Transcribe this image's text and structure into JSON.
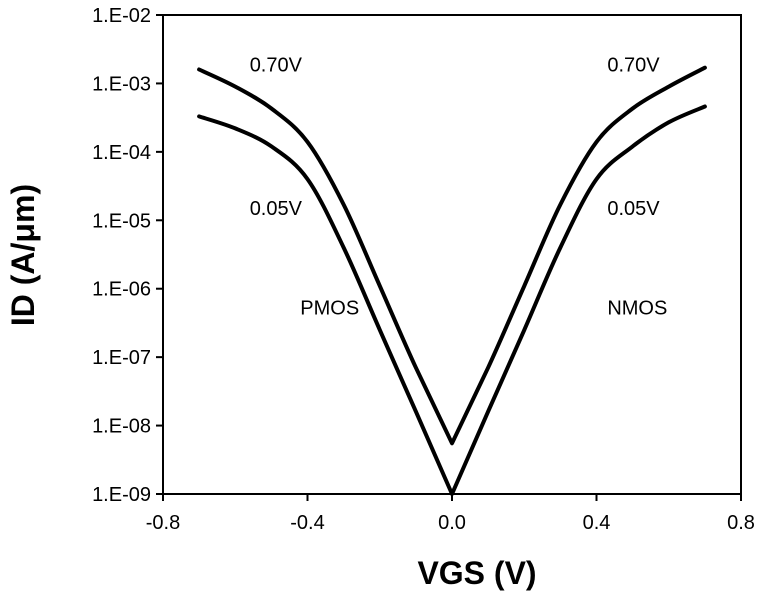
{
  "chart_data": {
    "type": "line",
    "xlabel": "VGS (V)",
    "ylabel": "ID (A/μm)",
    "xlim": [
      -0.8,
      0.8
    ],
    "ylim": [
      1e-09,
      0.01
    ],
    "yscale": "log",
    "x_ticks": [
      -0.8,
      -0.4,
      0.0,
      0.4,
      0.8
    ],
    "x_tick_labels": [
      "-0.8",
      "-0.4",
      "0.0",
      "0.4",
      "0.8"
    ],
    "y_ticks": [
      1e-09,
      1e-08,
      1e-07,
      1e-06,
      1e-05,
      0.0001,
      0.001,
      0.01
    ],
    "y_tick_labels": [
      "1.E-09",
      "1.E-08",
      "1.E-07",
      "1.E-06",
      "1.E-05",
      "1.E-04",
      "1.E-03",
      "1.E-02"
    ],
    "grid": false,
    "legend": "none",
    "series": [
      {
        "x": [
          -0.7,
          -0.6,
          -0.5,
          -0.4,
          -0.3,
          -0.2,
          -0.1,
          0.0,
          0.1,
          0.2,
          0.3,
          0.4,
          0.5,
          0.6,
          0.7
        ],
        "y": [
          0.0016,
          0.0009,
          0.00043,
          0.00014,
          1.7e-05,
          1.1e-06,
          7e-08,
          5.5e-09,
          7e-08,
          1.1e-06,
          1.7e-05,
          0.00014,
          0.00043,
          0.0009,
          0.0017
        ]
      },
      {
        "x": [
          -0.7,
          -0.6,
          -0.5,
          -0.4,
          -0.3,
          -0.2,
          -0.1,
          0.0,
          0.1,
          0.2,
          0.3,
          0.4,
          0.5,
          0.6,
          0.7
        ],
        "y": [
          0.00033,
          0.00022,
          0.00012,
          4e-05,
          4e-06,
          2.5e-07,
          1.6e-08,
          1e-09,
          1.6e-08,
          2.5e-07,
          4e-06,
          4e-05,
          0.00012,
          0.00027,
          0.00046
        ]
      }
    ],
    "annotations": [
      {
        "text": "0.70V",
        "x": -0.56,
        "y": 0.0019
      },
      {
        "text": "0.05V",
        "x": -0.56,
        "y": 1.5e-05
      },
      {
        "text": "PMOS",
        "x": -0.42,
        "y": 5.3e-07
      },
      {
        "text": "0.70V",
        "x": 0.43,
        "y": 0.0019
      },
      {
        "text": "0.05V",
        "x": 0.43,
        "y": 1.5e-05
      },
      {
        "text": "NMOS",
        "x": 0.43,
        "y": 5.3e-07
      }
    ]
  }
}
